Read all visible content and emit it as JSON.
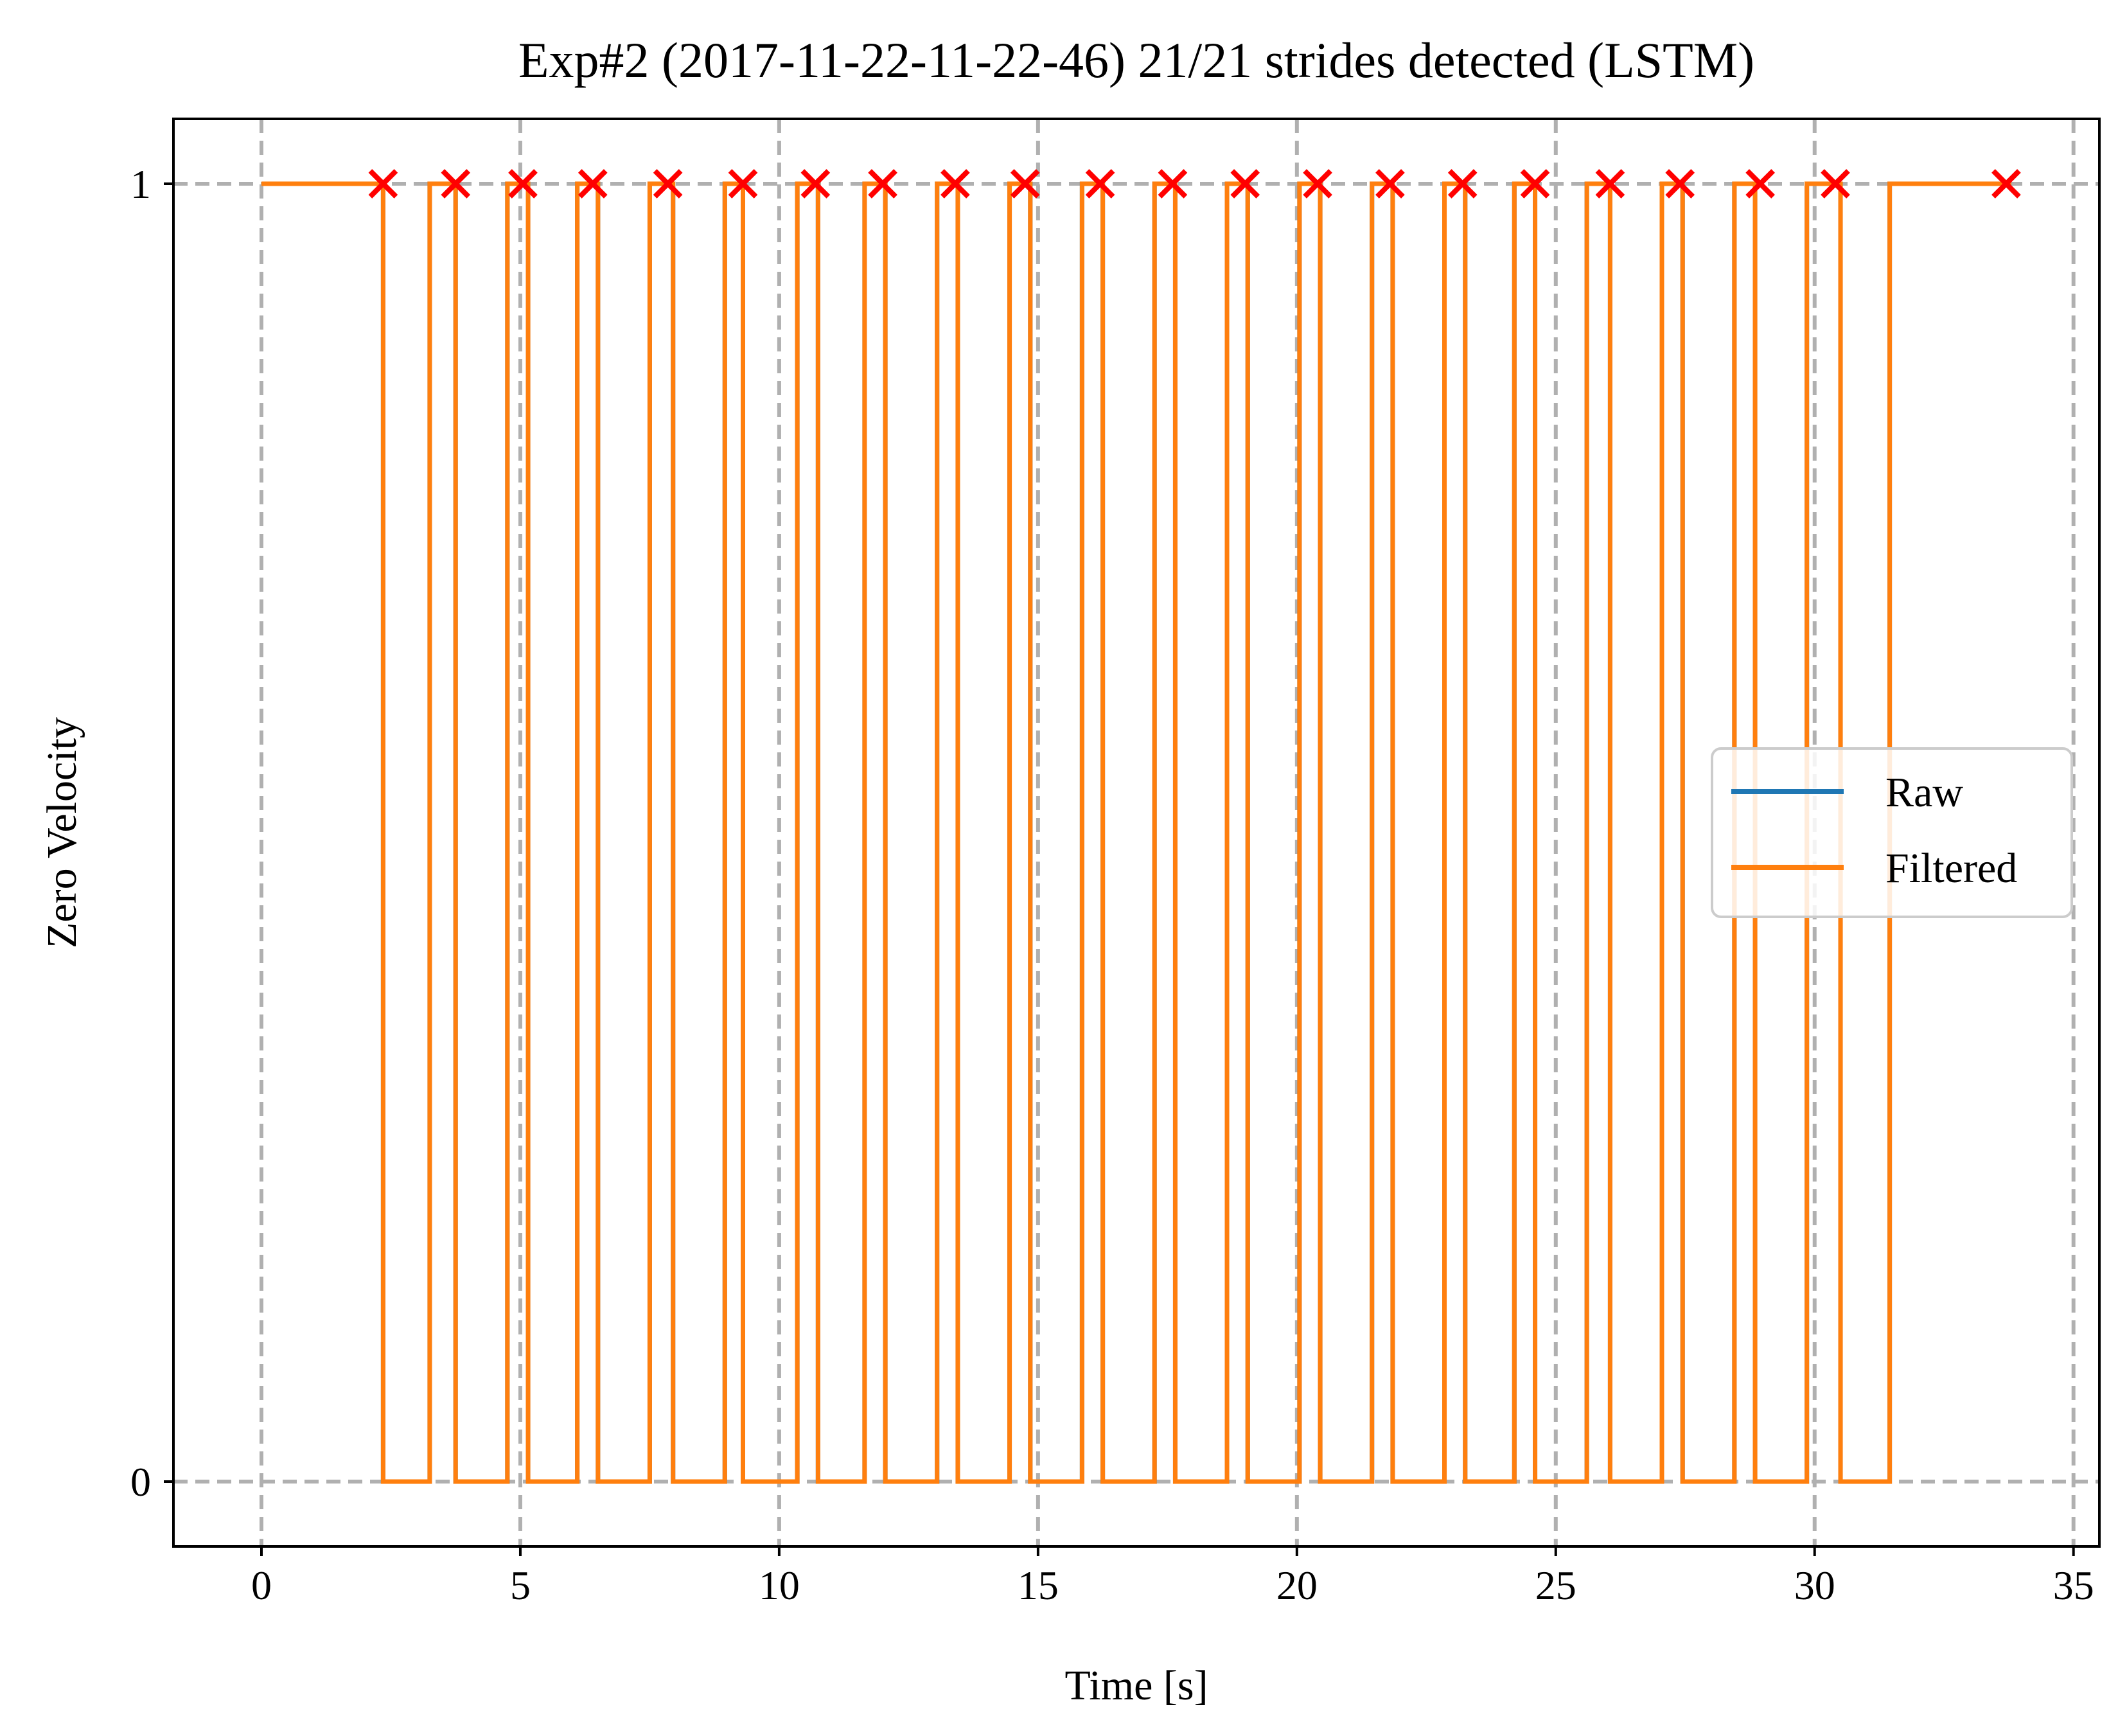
{
  "chart_data": {
    "type": "line",
    "title": "Exp#2 (2017-11-22-11-22-46) 21/21 strides detected (LSTM)",
    "xlabel": "Time [s]",
    "ylabel": "Zero Velocity",
    "xlim": [
      -1.7,
      35.5
    ],
    "ylim": [
      -0.05,
      1.05
    ],
    "x_ticks": [
      0,
      5,
      10,
      15,
      20,
      25,
      30,
      35
    ],
    "x_tick_labels": [
      "0",
      "5",
      "10",
      "15",
      "20",
      "25",
      "30",
      "35"
    ],
    "y_ticks": [
      0,
      1
    ],
    "y_tick_labels": [
      "0",
      "1"
    ],
    "grid": true,
    "legend_position": "center-right",
    "series": [
      {
        "name": "Raw",
        "color": "#1f77b4",
        "zero_velocity_low_intervals": [
          [
            2.35,
            3.25
          ],
          [
            3.75,
            4.75
          ],
          [
            5.15,
            6.1
          ],
          [
            6.5,
            7.5
          ],
          [
            7.95,
            8.95
          ],
          [
            9.3,
            10.35
          ],
          [
            10.75,
            11.65
          ],
          [
            12.05,
            13.05
          ],
          [
            13.45,
            14.45
          ],
          [
            14.85,
            15.85
          ],
          [
            16.25,
            17.25
          ],
          [
            17.65,
            18.65
          ],
          [
            19.05,
            20.05
          ],
          [
            20.45,
            21.45
          ],
          [
            21.85,
            22.85
          ],
          [
            23.25,
            24.2
          ],
          [
            24.6,
            25.6
          ],
          [
            26.05,
            27.05
          ],
          [
            27.45,
            28.45
          ],
          [
            28.85,
            29.85
          ],
          [
            30.5,
            31.45
          ]
        ],
        "x_start": 0,
        "x_end": 33.8
      },
      {
        "name": "Filtered",
        "color": "#ff7f0e",
        "zero_velocity_low_intervals": [
          [
            2.35,
            3.25
          ],
          [
            3.75,
            4.75
          ],
          [
            5.15,
            6.1
          ],
          [
            6.5,
            7.5
          ],
          [
            7.95,
            8.95
          ],
          [
            9.3,
            10.35
          ],
          [
            10.75,
            11.65
          ],
          [
            12.05,
            13.05
          ],
          [
            13.45,
            14.45
          ],
          [
            14.85,
            15.85
          ],
          [
            16.25,
            17.25
          ],
          [
            17.65,
            18.65
          ],
          [
            19.05,
            20.05
          ],
          [
            20.45,
            21.45
          ],
          [
            21.85,
            22.85
          ],
          [
            23.25,
            24.2
          ],
          [
            24.6,
            25.6
          ],
          [
            26.05,
            27.05
          ],
          [
            27.45,
            28.45
          ],
          [
            28.85,
            29.85
          ],
          [
            30.5,
            31.45
          ]
        ],
        "x_start": 0,
        "x_end": 33.8
      }
    ],
    "stride_markers": {
      "marker": "x",
      "color": "#ff0000",
      "y": 1,
      "x": [
        2.35,
        3.75,
        5.05,
        6.4,
        7.85,
        9.3,
        10.7,
        12.0,
        13.4,
        14.75,
        16.2,
        17.6,
        19.0,
        20.4,
        21.8,
        23.2,
        24.6,
        26.05,
        27.4,
        28.95,
        30.4,
        33.7
      ]
    }
  }
}
